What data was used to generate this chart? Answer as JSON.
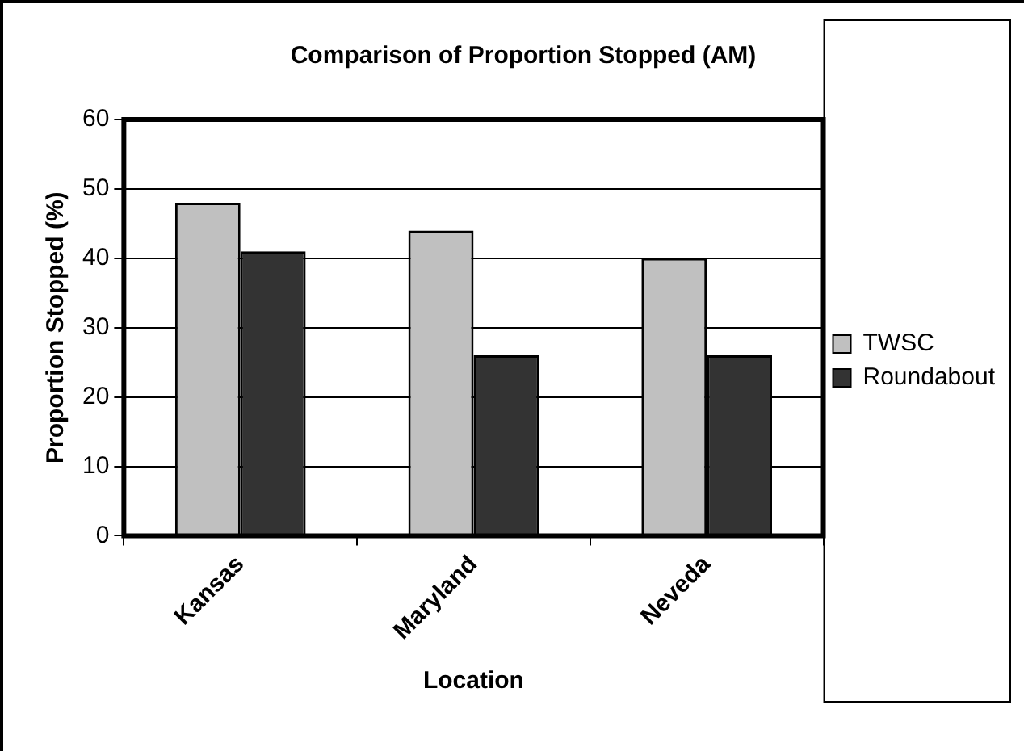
{
  "chart_data": {
    "type": "bar",
    "title": "Comparison of Proportion Stopped (AM)",
    "xlabel": "Location",
    "ylabel": "Proportion Stopped (%)",
    "categories": [
      "Kansas",
      "Maryland",
      "Neveda"
    ],
    "series": [
      {
        "name": "TWSC",
        "color": "#c0c0c0",
        "values": [
          48,
          44,
          40
        ]
      },
      {
        "name": "Roundabout",
        "color": "#333333",
        "values": [
          41,
          26,
          26
        ]
      }
    ],
    "ylim": [
      0,
      60
    ],
    "yticks": [
      0,
      10,
      20,
      30,
      40,
      50,
      60
    ],
    "grid": "y",
    "legend": "right"
  }
}
